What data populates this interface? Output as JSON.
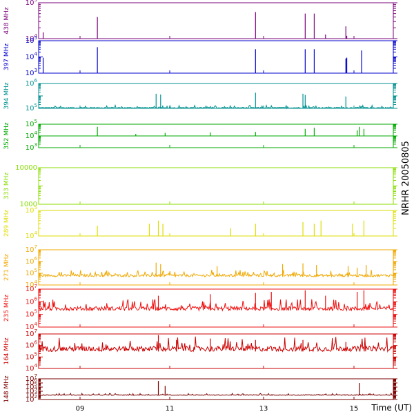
{
  "chart_data": {
    "type": "line",
    "title": "NRHR 20050805",
    "xlabel": "Time (UT)",
    "x_ticks": [
      "09",
      "11",
      "13",
      "15"
    ],
    "x_range_hours": [
      8.25,
      16.1
    ],
    "x_tick_hours": [
      9,
      11,
      13,
      15
    ],
    "grid": false,
    "legend": "none",
    "panels": [
      {
        "name": "438 MHz",
        "color": "#7a007a",
        "log": true,
        "range": [
          10000,
          100000
        ],
        "ticks": [
          "10^4",
          "10^5"
        ],
        "baseline": 10000,
        "noise": 0.0,
        "spikes": [
          [
            8.35,
            15000
          ],
          [
            9.55,
            40000
          ],
          [
            13.05,
            55000
          ],
          [
            14.15,
            50000
          ],
          [
            14.35,
            50000
          ],
          [
            14.6,
            13000
          ],
          [
            15.05,
            22000
          ],
          [
            15.07,
            12000
          ]
        ]
      },
      {
        "name": "397 MHz",
        "color": "#0000cc",
        "log": true,
        "range": [
          1000,
          100000
        ],
        "ticks": [
          "10^3",
          "10^4",
          "10^5"
        ],
        "baseline": 1000,
        "noise": 0.0,
        "spikes": [
          [
            8.35,
            9000
          ],
          [
            9.55,
            40000
          ],
          [
            13.05,
            30000
          ],
          [
            14.15,
            30000
          ],
          [
            14.35,
            30000
          ],
          [
            15.05,
            8000
          ],
          [
            15.07,
            9000
          ],
          [
            15.4,
            25000
          ]
        ]
      },
      {
        "name": "394 MHz",
        "color": "#009090",
        "log": true,
        "range": [
          100000,
          10000000
        ],
        "ticks": [
          "10^5",
          "10^6"
        ],
        "baseline": 100000,
        "noise": 0.25,
        "spikes": [
          [
            10.85,
            1500000
          ],
          [
            10.95,
            1300000
          ],
          [
            13.05,
            1800000
          ],
          [
            14.1,
            1500000
          ],
          [
            14.15,
            1200000
          ],
          [
            15.05,
            900000
          ]
        ]
      },
      {
        "name": "352 MHz",
        "color": "#00aa00",
        "log": true,
        "range": [
          1000,
          100000
        ],
        "ticks": [
          "10^3",
          "10^4",
          "10^5"
        ],
        "baseline": 10000,
        "noise": 0.0,
        "spikes": [
          [
            9.55,
            60000
          ],
          [
            10.4,
            15000
          ],
          [
            11.05,
            18000
          ],
          [
            12.05,
            20000
          ],
          [
            13.05,
            22000
          ],
          [
            14.15,
            40000
          ],
          [
            14.35,
            50000
          ],
          [
            15.3,
            30000
          ],
          [
            15.35,
            60000
          ],
          [
            15.45,
            40000
          ]
        ]
      },
      {
        "name": "333 MHz",
        "color": "#88dd00",
        "log": true,
        "range": [
          100,
          10000
        ],
        "ticks": [
          "1000",
          "10000"
        ],
        "baseline": 10000,
        "noise": 0.0,
        "spikes": []
      },
      {
        "name": "289 MHz",
        "color": "#dddd00",
        "log": true,
        "range": [
          10000,
          100000
        ],
        "ticks": [
          "10^4",
          "10^5"
        ],
        "baseline": 10000,
        "noise": 0.0,
        "spikes": [
          [
            9.55,
            25000
          ],
          [
            10.7,
            30000
          ],
          [
            10.9,
            40000
          ],
          [
            11.0,
            30000
          ],
          [
            12.5,
            20000
          ],
          [
            13.05,
            30000
          ],
          [
            14.1,
            35000
          ],
          [
            14.35,
            30000
          ],
          [
            14.5,
            40000
          ],
          [
            15.2,
            30000
          ],
          [
            15.45,
            40000
          ]
        ]
      },
      {
        "name": "271 MHz",
        "color": "#f0a800",
        "log": true,
        "range": [
          10000,
          10000000
        ],
        "ticks": [
          "10^4",
          "10^5",
          "10^6",
          "10^7"
        ],
        "baseline": 50000,
        "noise": 0.6,
        "spikes": [
          [
            10.85,
            800000
          ],
          [
            10.95,
            600000
          ],
          [
            12.2,
            400000
          ],
          [
            13.65,
            600000
          ],
          [
            14.1,
            700000
          ],
          [
            14.4,
            500000
          ],
          [
            15.1,
            400000
          ],
          [
            15.3,
            300000
          ],
          [
            15.5,
            500000
          ]
        ]
      },
      {
        "name": "235 MHz",
        "color": "#ee1010",
        "log": true,
        "range": [
          10000,
          10000000
        ],
        "ticks": [
          "10^4",
          "10^5",
          "10^6",
          "10^7"
        ],
        "baseline": 200000,
        "noise": 0.9,
        "spikes": [
          [
            10.9,
            3000000
          ],
          [
            12.05,
            4000000
          ],
          [
            13.05,
            5000000
          ],
          [
            13.4,
            6000000
          ],
          [
            14.15,
            8000000
          ],
          [
            14.6,
            3000000
          ],
          [
            15.3,
            6000000
          ],
          [
            15.45,
            8000000
          ]
        ]
      },
      {
        "name": "164 MHz",
        "color": "#cc0000",
        "log": true,
        "range": [
          10000,
          10000000
        ],
        "ticks": [
          "10^4",
          "10^5",
          "10^6",
          "10^7"
        ],
        "baseline": 300000,
        "noise": 1.3,
        "spikes": [
          [
            10.9,
            8000000
          ],
          [
            11.3,
            3000000
          ],
          [
            12.05,
            4000000
          ],
          [
            13.05,
            3000000
          ],
          [
            14.1,
            3000000
          ],
          [
            15.05,
            2000000
          ]
        ]
      },
      {
        "name": "148 MHz",
        "color": "#7a0000",
        "log": true,
        "range": [
          100,
          10000000
        ],
        "ticks": [
          "10^2",
          "10^3",
          "10^4",
          "10^5",
          "10^6",
          "10^7"
        ],
        "baseline": 1000,
        "noise": 0.5,
        "spikes": [
          [
            10.9,
            3000000
          ],
          [
            11.05,
            200000
          ],
          [
            15.35,
            1000000
          ]
        ]
      }
    ]
  }
}
